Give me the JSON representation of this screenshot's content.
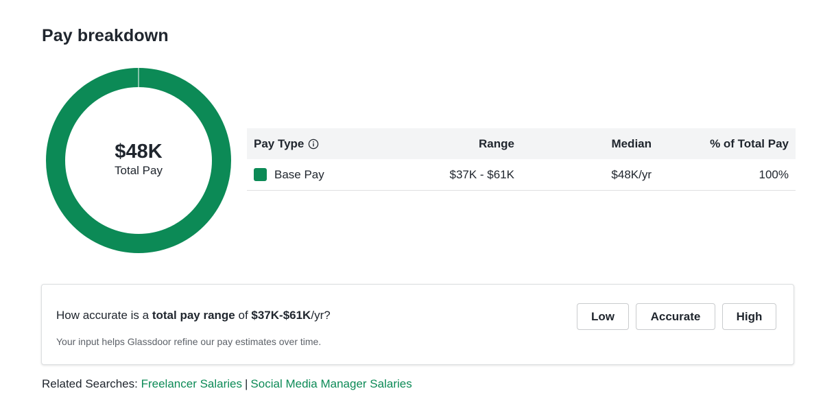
{
  "section": {
    "title": "Pay breakdown"
  },
  "donut": {
    "value": "$48K",
    "label": "Total Pay",
    "base_pay_share": 100,
    "color": "#0c8a56"
  },
  "table": {
    "headers": {
      "pay_type": "Pay Type",
      "range": "Range",
      "median": "Median",
      "percent": "% of Total Pay"
    },
    "rows": [
      {
        "pay_type": "Base Pay",
        "range": "$37K - $61K",
        "median": "$48K/yr",
        "percent": "100%",
        "swatch_color": "#0c8a56"
      }
    ],
    "info_icon": "info-circle-icon"
  },
  "feedback": {
    "question_prefix": "How accurate is a ",
    "question_bold": "total pay range",
    "question_mid": " of ",
    "question_range": "$37K-$61K",
    "question_suffix": "/yr?",
    "hint": "Your input helps Glassdoor refine our pay estimates over time.",
    "buttons": {
      "low": "Low",
      "accurate": "Accurate",
      "high": "High"
    }
  },
  "related": {
    "label": "Related Searches: ",
    "links": [
      "Freelancer Salaries",
      "Social Media Manager Salaries"
    ],
    "separator": "|"
  },
  "colors": {
    "accent": "#0c8a56",
    "text": "#20262e",
    "header_bg": "#f3f4f5"
  }
}
